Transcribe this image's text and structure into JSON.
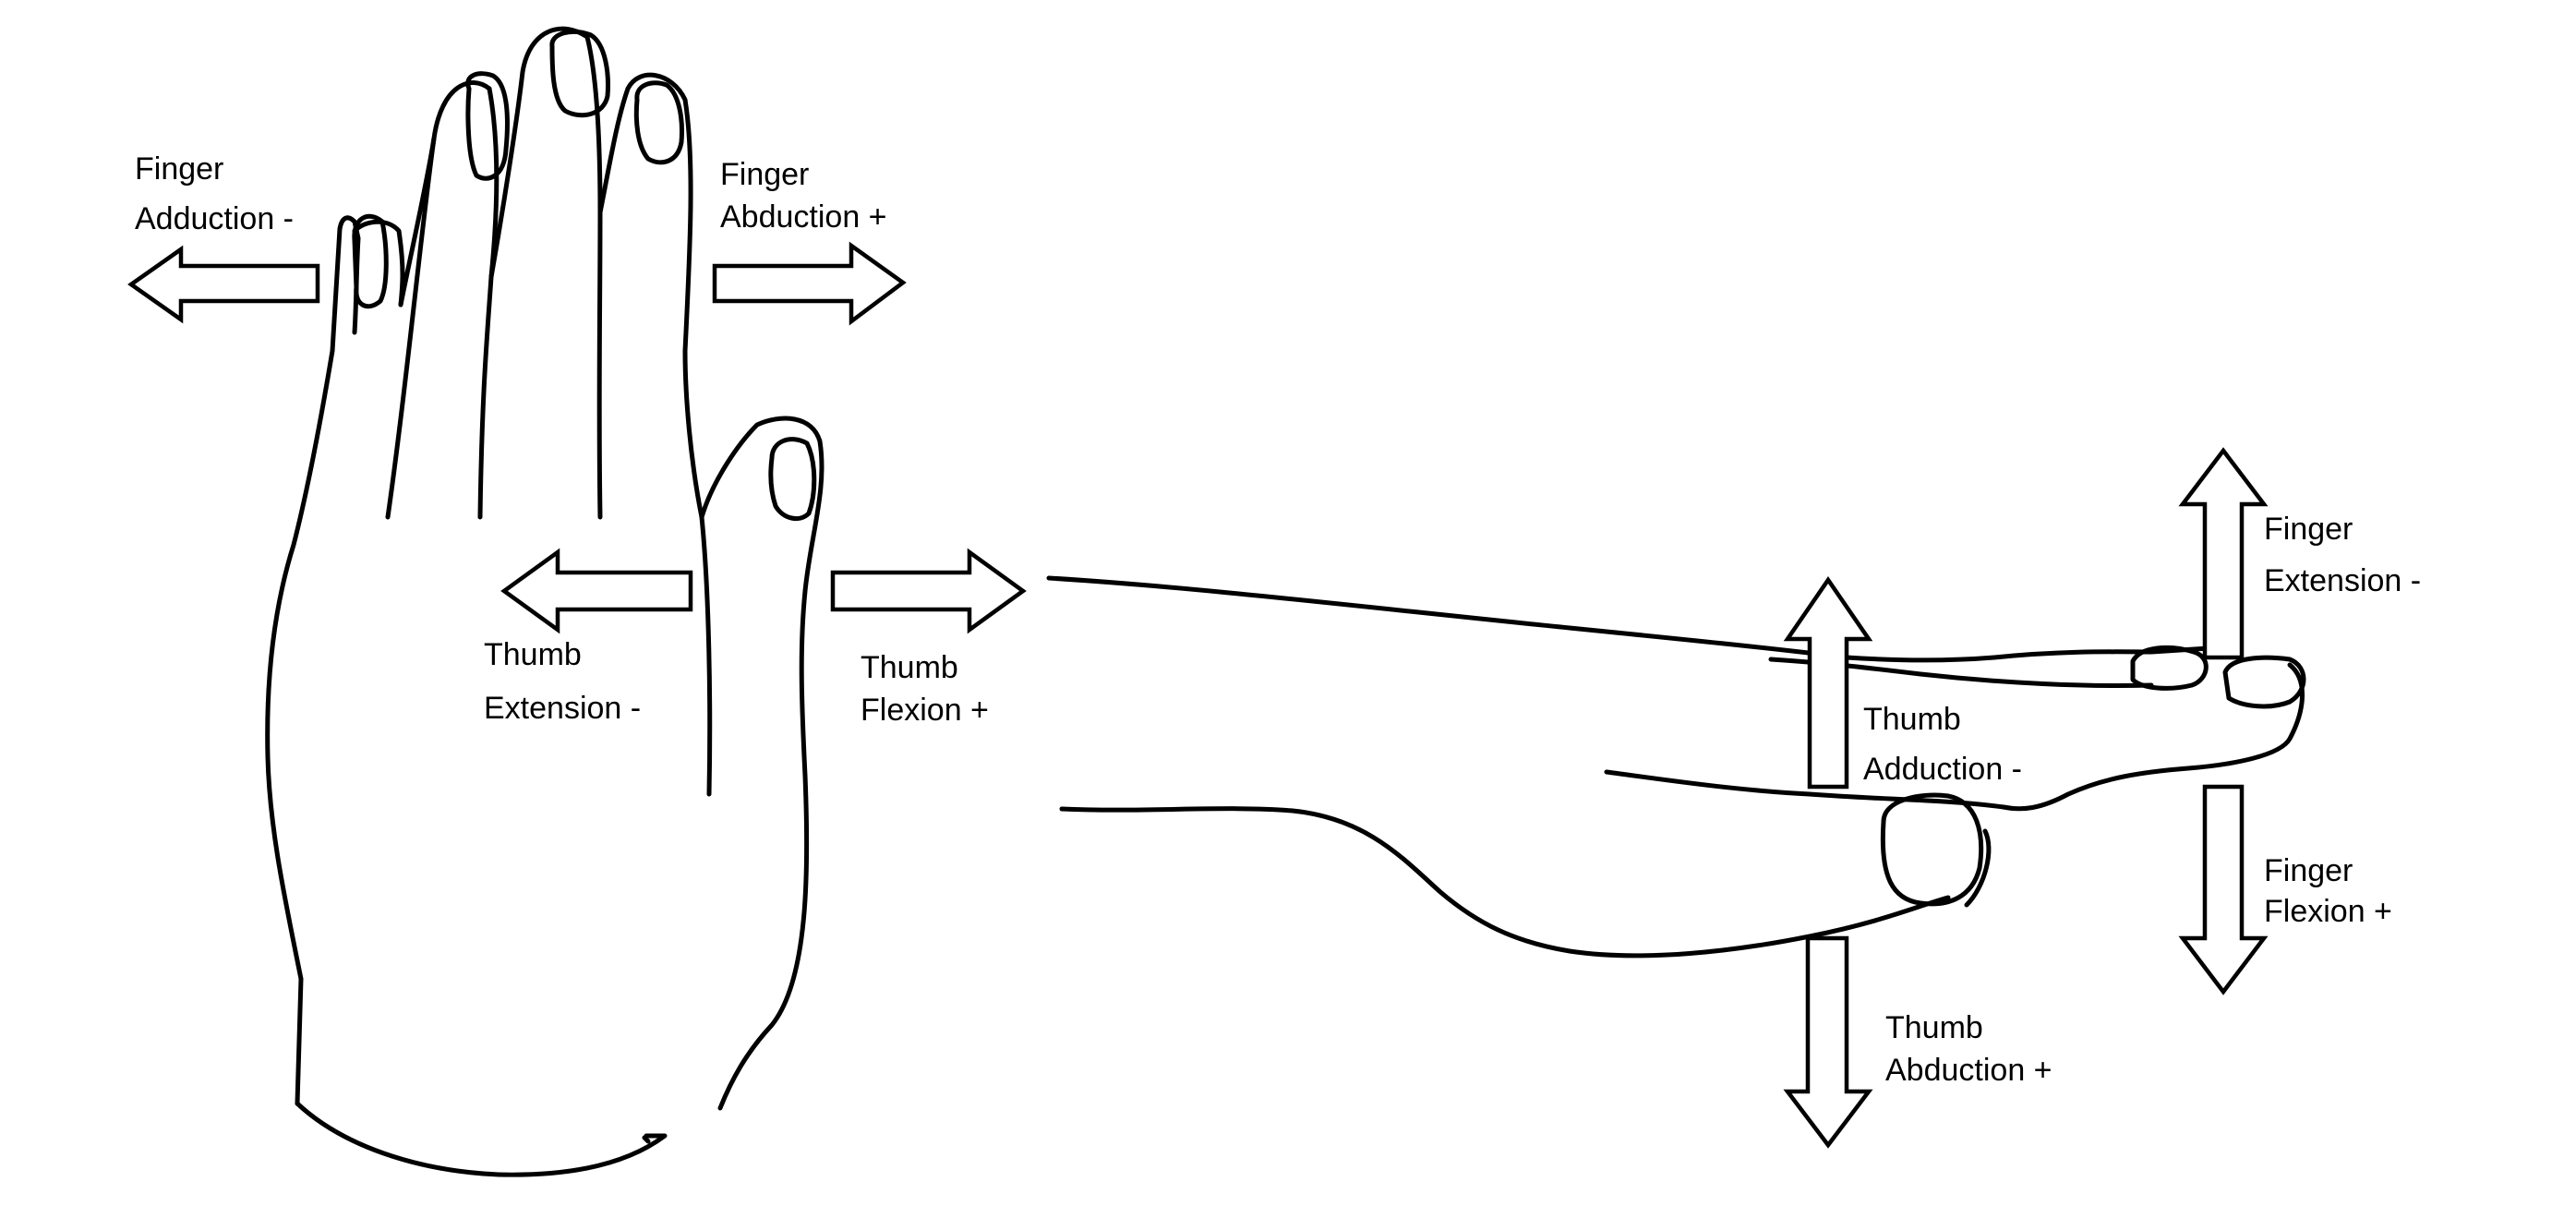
{
  "labels": {
    "finger_adduction": [
      "Finger",
      "Adduction -"
    ],
    "finger_abduction": [
      "Finger",
      "Abduction +"
    ],
    "thumb_extension_left": [
      "Thumb",
      "Extension -"
    ],
    "thumb_flexion": [
      "Thumb",
      "Flexion +"
    ],
    "finger_extension": [
      "Finger",
      "Extension -"
    ],
    "thumb_adduction": [
      "Thumb",
      "Adduction -"
    ],
    "finger_flexion": [
      "Finger",
      "Flexion +"
    ],
    "thumb_abduction_plus": [
      "Thumb",
      "Abduction +"
    ]
  }
}
